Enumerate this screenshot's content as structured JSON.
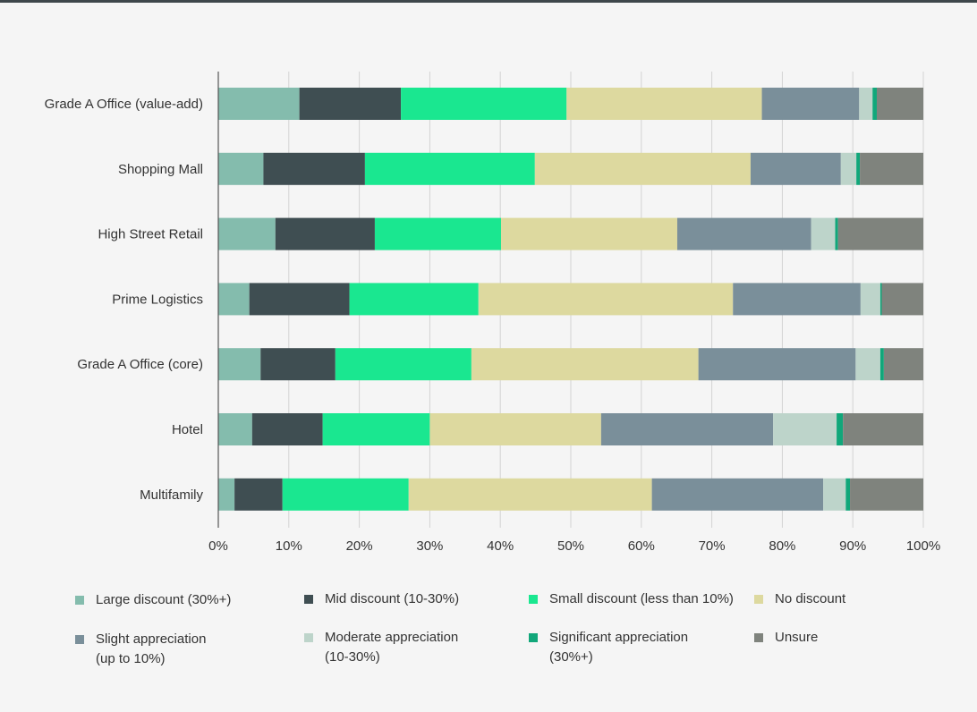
{
  "chart_data": {
    "type": "bar",
    "orientation": "horizontal",
    "stacked": true,
    "title": "",
    "xlabel": "",
    "ylabel": "",
    "xlim": [
      0,
      100
    ],
    "x_ticks": [
      "0%",
      "10%",
      "20%",
      "30%",
      "40%",
      "50%",
      "60%",
      "70%",
      "80%",
      "90%",
      "100%"
    ],
    "grid": true,
    "legend_position": "bottom",
    "categories": [
      "Grade A Office (value-add)",
      "Shopping Mall",
      "High Street Retail",
      "Prime Logistics",
      "Grade A Office (core)",
      "Hotel",
      "Multifamily"
    ],
    "series": [
      {
        "name": "Large discount (30%+)",
        "color": "#84bcad",
        "values": [
          11.5,
          6.4,
          8.1,
          4.4,
          6.0,
          4.8,
          2.3
        ]
      },
      {
        "name": "Mid discount (10-30%)",
        "color": "#3f4e52",
        "values": [
          14.4,
          14.4,
          14.1,
          14.2,
          10.6,
          10.0,
          6.8
        ]
      },
      {
        "name": "Small discount (less than 10%)",
        "color": "#1ae790",
        "values": [
          23.5,
          24.1,
          17.9,
          18.3,
          19.3,
          15.2,
          17.9
        ]
      },
      {
        "name": "No discount",
        "color": "#ddd99f",
        "values": [
          27.7,
          30.6,
          25.0,
          36.1,
          32.2,
          24.3,
          34.5
        ]
      },
      {
        "name": "Slight appreciation (up to 10%)",
        "color": "#7a8f9a",
        "values": [
          13.8,
          12.8,
          19.0,
          18.1,
          22.3,
          24.4,
          24.3
        ]
      },
      {
        "name": "Moderate appreciation (10-30%)",
        "color": "#bdd4ca",
        "values": [
          1.9,
          2.2,
          3.4,
          2.8,
          3.5,
          9.0,
          3.2
        ]
      },
      {
        "name": "Significant appreciation (30%+)",
        "color": "#11a77a",
        "values": [
          0.6,
          0.5,
          0.4,
          0.2,
          0.5,
          0.9,
          0.6
        ]
      },
      {
        "name": "Unsure",
        "color": "#7f837d",
        "values": [
          6.6,
          9.0,
          12.1,
          5.9,
          5.6,
          11.4,
          10.4
        ]
      }
    ]
  },
  "legend": {
    "items": [
      {
        "line1": "Large discount (30%+)",
        "line2": ""
      },
      {
        "line1": "Mid discount (10-30%)",
        "line2": ""
      },
      {
        "line1": "Small discount (less than 10%)",
        "line2": ""
      },
      {
        "line1": "No discount",
        "line2": ""
      },
      {
        "line1": "Slight appreciation",
        "line2": "(up to 10%)"
      },
      {
        "line1": "Moderate appreciation",
        "line2": "(10-30%)"
      },
      {
        "line1": "Significant appreciation",
        "line2": "(30%+)"
      },
      {
        "line1": "Unsure",
        "line2": ""
      }
    ]
  }
}
